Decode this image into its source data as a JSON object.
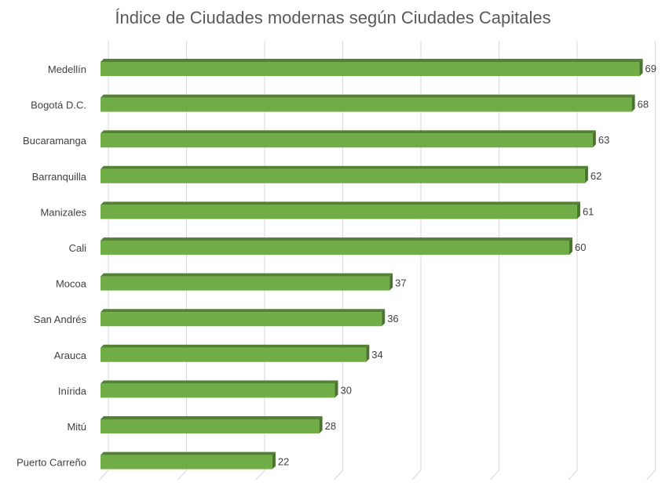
{
  "chart_data": {
    "type": "bar",
    "orientation": "horizontal",
    "style": "3d",
    "title": "Índice de Ciudades modernas según Ciudades Capitales",
    "categories": [
      "Medellín",
      "Bogotá D.C.",
      "Bucaramanga",
      "Barranquilla",
      "Manizales",
      "Cali",
      "Mocoa",
      "San Andrés",
      "Arauca",
      "Inírida",
      "Mitú",
      "Puerto Carreño"
    ],
    "values": [
      69,
      68,
      63,
      62,
      61,
      60,
      37,
      36,
      34,
      30,
      28,
      22
    ],
    "xlim": [
      0,
      70
    ],
    "grid": true,
    "data_labels": true,
    "colors": {
      "front": "#70ad47",
      "top": "#548235",
      "side": "#4a7330",
      "grid": "#d9d9d9"
    }
  }
}
